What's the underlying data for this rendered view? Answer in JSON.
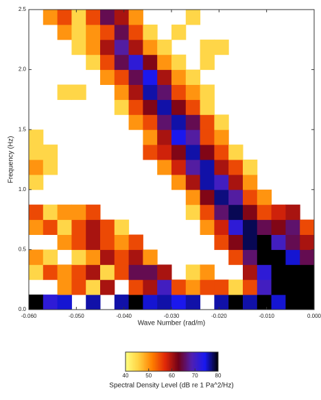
{
  "chart_data": {
    "type": "heatmap",
    "xlabel": "Wave Number (rad/m)",
    "ylabel": "Frequency (Hz)",
    "colorbar_label": "Spectral Density Level (dB re 1 Pa^2/Hz)",
    "x": [
      -0.0585,
      -0.0555,
      -0.0525,
      -0.0495,
      -0.0465,
      -0.0435,
      -0.0405,
      -0.0375,
      -0.0345,
      -0.0315,
      -0.0285,
      -0.0255,
      -0.0225,
      -0.0195,
      -0.0165,
      -0.0135,
      -0.0105,
      -0.0075,
      -0.0045,
      -0.0015
    ],
    "y": [
      0.0625,
      0.1875,
      0.3125,
      0.4375,
      0.5625,
      0.6875,
      0.8125,
      0.9375,
      1.0625,
      1.1875,
      1.3125,
      1.4375,
      1.5625,
      1.6875,
      1.8125,
      1.9375,
      2.0625,
      2.1875,
      2.3125,
      2.4375
    ],
    "z": [
      [
        80,
        72,
        75,
        null,
        76,
        null,
        76,
        80,
        75,
        76,
        74,
        76,
        null,
        76,
        80,
        76,
        80,
        75,
        80,
        80
      ],
      [
        null,
        null,
        50,
        55,
        45,
        60,
        null,
        55,
        60,
        70,
        55,
        50,
        55,
        55,
        45,
        55,
        70,
        80,
        80,
        80
      ],
      [
        45,
        55,
        50,
        55,
        60,
        45,
        55,
        65,
        65,
        60,
        null,
        45,
        50,
        null,
        null,
        60,
        72,
        80,
        80,
        80
      ],
      [
        50,
        45,
        null,
        45,
        50,
        60,
        55,
        60,
        50,
        null,
        null,
        null,
        null,
        null,
        55,
        66,
        80,
        80,
        75,
        65
      ],
      [
        null,
        null,
        50,
        55,
        60,
        55,
        50,
        55,
        null,
        null,
        null,
        null,
        null,
        55,
        62,
        78,
        80,
        70,
        65,
        60
      ],
      [
        50,
        55,
        45,
        55,
        60,
        55,
        45,
        null,
        null,
        null,
        null,
        null,
        50,
        58,
        72,
        78,
        65,
        62,
        66,
        55
      ],
      [
        55,
        45,
        50,
        50,
        55,
        null,
        null,
        null,
        null,
        null,
        null,
        45,
        55,
        66,
        78,
        62,
        55,
        58,
        60,
        null
      ],
      [
        null,
        null,
        null,
        null,
        null,
        null,
        null,
        null,
        null,
        null,
        null,
        50,
        62,
        77,
        68,
        55,
        50,
        null,
        null,
        null
      ],
      [
        45,
        null,
        null,
        null,
        null,
        null,
        null,
        null,
        null,
        null,
        50,
        60,
        76,
        70,
        60,
        50,
        null,
        null,
        null,
        null
      ],
      [
        50,
        45,
        null,
        null,
        null,
        null,
        null,
        null,
        null,
        50,
        58,
        68,
        76,
        60,
        55,
        45,
        null,
        null,
        null,
        null
      ],
      [
        45,
        45,
        null,
        null,
        null,
        null,
        null,
        null,
        55,
        58,
        62,
        76,
        62,
        55,
        45,
        null,
        null,
        null,
        null,
        null
      ],
      [
        45,
        null,
        null,
        null,
        null,
        null,
        null,
        null,
        50,
        60,
        74,
        68,
        55,
        50,
        null,
        null,
        null,
        null,
        null,
        null
      ],
      [
        null,
        null,
        null,
        null,
        null,
        null,
        null,
        50,
        55,
        66,
        76,
        65,
        55,
        45,
        null,
        null,
        null,
        null,
        null,
        null
      ],
      [
        null,
        null,
        null,
        null,
        null,
        null,
        45,
        55,
        62,
        76,
        62,
        55,
        45,
        null,
        null,
        null,
        null,
        null,
        null,
        null
      ],
      [
        null,
        null,
        45,
        45,
        null,
        null,
        50,
        60,
        76,
        66,
        55,
        50,
        45,
        null,
        null,
        null,
        null,
        null,
        null,
        null
      ],
      [
        null,
        null,
        null,
        null,
        null,
        50,
        55,
        65,
        74,
        60,
        50,
        45,
        null,
        null,
        null,
        null,
        null,
        null,
        null,
        null
      ],
      [
        null,
        null,
        null,
        null,
        45,
        55,
        65,
        72,
        62,
        50,
        45,
        null,
        45,
        null,
        null,
        null,
        null,
        null,
        null,
        null
      ],
      [
        null,
        null,
        null,
        45,
        50,
        60,
        68,
        60,
        50,
        45,
        null,
        null,
        45,
        45,
        null,
        null,
        null,
        null,
        null,
        null
      ],
      [
        null,
        null,
        50,
        45,
        50,
        55,
        65,
        55,
        45,
        null,
        45,
        null,
        null,
        null,
        null,
        null,
        null,
        null,
        null,
        null
      ],
      [
        null,
        50,
        55,
        45,
        55,
        65,
        60,
        50,
        null,
        null,
        null,
        45,
        null,
        null,
        null,
        null,
        null,
        null,
        null,
        null
      ]
    ],
    "xlim": [
      -0.06,
      0.0
    ],
    "ylim": [
      0.0,
      2.5
    ],
    "zlim": [
      40,
      80
    ],
    "xticks": [
      {
        "value": -0.06,
        "label": "-0.060"
      },
      {
        "value": -0.05,
        "label": "-0.050"
      },
      {
        "value": -0.04,
        "label": "-0.040"
      },
      {
        "value": -0.03,
        "label": "-0.030"
      },
      {
        "value": -0.02,
        "label": "-0.020"
      },
      {
        "value": -0.01,
        "label": "-0.010"
      },
      {
        "value": 0.0,
        "label": "0.000"
      }
    ],
    "yticks": [
      {
        "value": 0.0,
        "label": "0.0"
      },
      {
        "value": 0.5,
        "label": "0.5"
      },
      {
        "value": 1.0,
        "label": "1.0"
      },
      {
        "value": 1.5,
        "label": "1.5"
      },
      {
        "value": 2.0,
        "label": "2.0"
      },
      {
        "value": 2.5,
        "label": "2.5"
      }
    ],
    "zticks": [
      40,
      50,
      60,
      70,
      80
    ],
    "colorscale": [
      "#ffff80",
      "#ffd040",
      "#ff8000",
      "#e02808",
      "#700018",
      "#5020b0",
      "#1818f0",
      "#000000"
    ]
  }
}
